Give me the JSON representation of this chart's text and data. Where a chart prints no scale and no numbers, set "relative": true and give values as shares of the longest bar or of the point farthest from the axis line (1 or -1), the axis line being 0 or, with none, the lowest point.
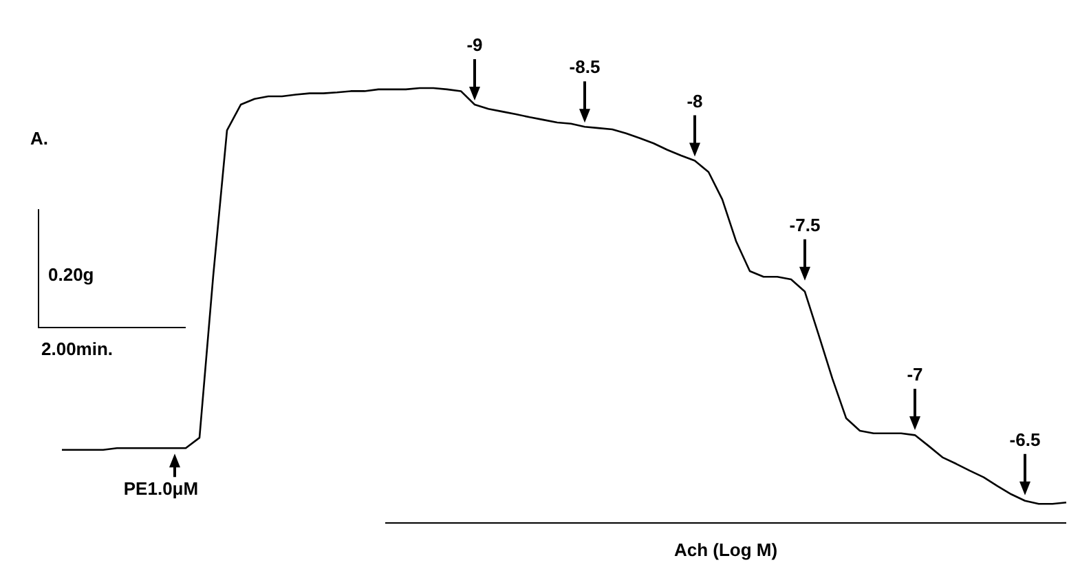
{
  "chart_data": {
    "type": "line",
    "relative": true,
    "marker": "none",
    "line_style": "solid",
    "xlabel": "Ach (Log M)",
    "categories": [
      null,
      null,
      null,
      null,
      null,
      null,
      null,
      null,
      null,
      null,
      null,
      null,
      null,
      null,
      null,
      null,
      null,
      null,
      null,
      null,
      null,
      null,
      null,
      null,
      null,
      null,
      null,
      null,
      null,
      null,
      null,
      null,
      null,
      null,
      null,
      null,
      null,
      null,
      null,
      null,
      null,
      null,
      null,
      null,
      null,
      null,
      null,
      null,
      null,
      null,
      null,
      null,
      null,
      null,
      null,
      null,
      null,
      null,
      null,
      null,
      null,
      null,
      null,
      null,
      null,
      null,
      null,
      null,
      null,
      null,
      null,
      null,
      null,
      null
    ],
    "series": [
      {
        "color": "#000000",
        "values": [
          0.168,
          0.168,
          0.168,
          0.168,
          0.172,
          0.172,
          0.172,
          0.172,
          0.172,
          0.172,
          0.196,
          0.569,
          0.903,
          0.962,
          0.975,
          0.981,
          0.981,
          0.985,
          0.988,
          0.988,
          0.99,
          0.993,
          0.993,
          0.997,
          0.997,
          0.997,
          1,
          1,
          0.997,
          0.993,
          0.962,
          0.952,
          0.946,
          0.94,
          0.933,
          0.927,
          0.921,
          0.918,
          0.911,
          0.908,
          0.905,
          0.896,
          0.885,
          0.873,
          0.858,
          0.845,
          0.833,
          0.807,
          0.744,
          0.648,
          0.579,
          0.566,
          0.566,
          0.56,
          0.532,
          0.433,
          0.332,
          0.241,
          0.212,
          0.206,
          0.206,
          0.206,
          0.202,
          0.177,
          0.151,
          0.136,
          0.12,
          0.105,
          0.085,
          0.066,
          0.051,
          0.044,
          0.044,
          0.047
        ]
      }
    ],
    "annotations": [
      "A.",
      "0.20g",
      "2.00min.",
      {
        "text": "PE1.0μM",
        "y": 0.172
      },
      {
        "text": "-9",
        "y": 0.962
      },
      {
        "text": "-8.5",
        "y": 0.911
      },
      {
        "text": "-8",
        "y": 0.833
      },
      {
        "text": "-7.5",
        "y": 0.548
      },
      {
        "text": "-7",
        "y": 0.204
      },
      {
        "text": "-6.5",
        "y": 0.054
      }
    ]
  }
}
